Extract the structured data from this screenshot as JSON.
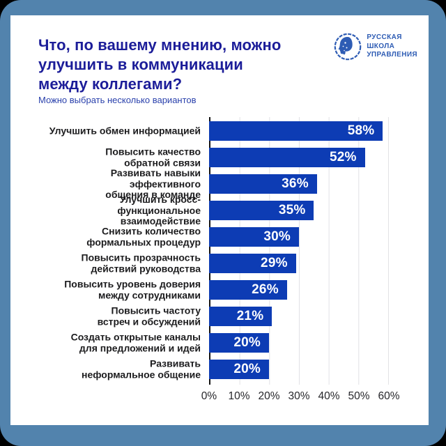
{
  "page": {
    "background_color": "#000000",
    "frame_color": "#5283ad",
    "card_color": "#ffffff"
  },
  "header": {
    "title": "Что, по вашему мнению, можно\nулучшить в коммуникации\nмежду коллегами?",
    "subtitle": "Можно выбрать несколько вариантов",
    "title_color": "#1c1d99",
    "subtitle_color": "#2a41ac"
  },
  "logo": {
    "icon": "rsu-emblem-profile-in-circle",
    "text": "РУССКАЯ\nШКОЛА\nУПРАВЛЕНИЯ",
    "color": "#2e5cb4"
  },
  "chart_data": {
    "type": "bar",
    "orientation": "horizontal",
    "title": "Что, по вашему мнению, можно улучшить в коммуникации между коллегами?",
    "subtitle": "Можно выбрать несколько вариантов",
    "categories": [
      "Улучшить обмен информацией",
      "Повысить качество\nобратной связи",
      "Развивать навыки эффективного\nобщения в команде",
      "Улучшить кросс-функциональное\nвзаимодействие",
      "Снизить количество\nформальных процедур",
      "Повысить прозрачность\nдействий руководства",
      "Повысить уровень доверия\nмежду сотрудниками",
      "Повысить частоту\nвстреч и обсуждений",
      "Создать открытые каналы\nдля предложений и идей",
      "Развивать\nнеформальное общение"
    ],
    "values": [
      58,
      52,
      36,
      35,
      30,
      29,
      26,
      21,
      20,
      20
    ],
    "value_labels": [
      "58%",
      "52%",
      "36%",
      "35%",
      "30%",
      "29%",
      "26%",
      "21%",
      "20%",
      "20%"
    ],
    "tick_labels": [
      "0%",
      "10%",
      "20%",
      "30%",
      "40%",
      "50%",
      "60%"
    ],
    "xlim": [
      0,
      60
    ],
    "grid": true,
    "bar_color": "#0d3cb4",
    "gridline_color": "#e1e1e5",
    "axis_color": "#131313",
    "legend": "none"
  }
}
